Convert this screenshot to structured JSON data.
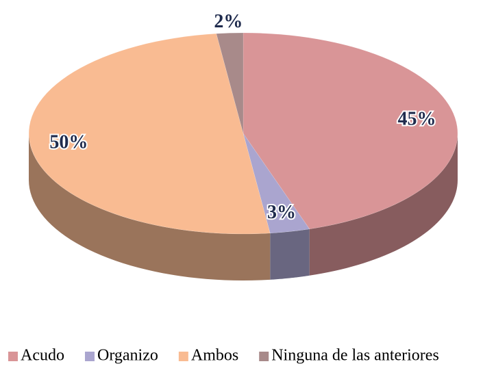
{
  "chart_data": {
    "type": "pie3d",
    "categories": [
      "Acudo",
      "Organizo",
      "Ambos",
      "Ninguna de las anteriores"
    ],
    "values": [
      45,
      3,
      50,
      2
    ],
    "value_labels": [
      "45%",
      "3%",
      "50%",
      "2%"
    ],
    "colors": [
      "#d99597",
      "#aaa5cf",
      "#f9bb92",
      "#a88a8a"
    ],
    "legend": "bottom"
  }
}
